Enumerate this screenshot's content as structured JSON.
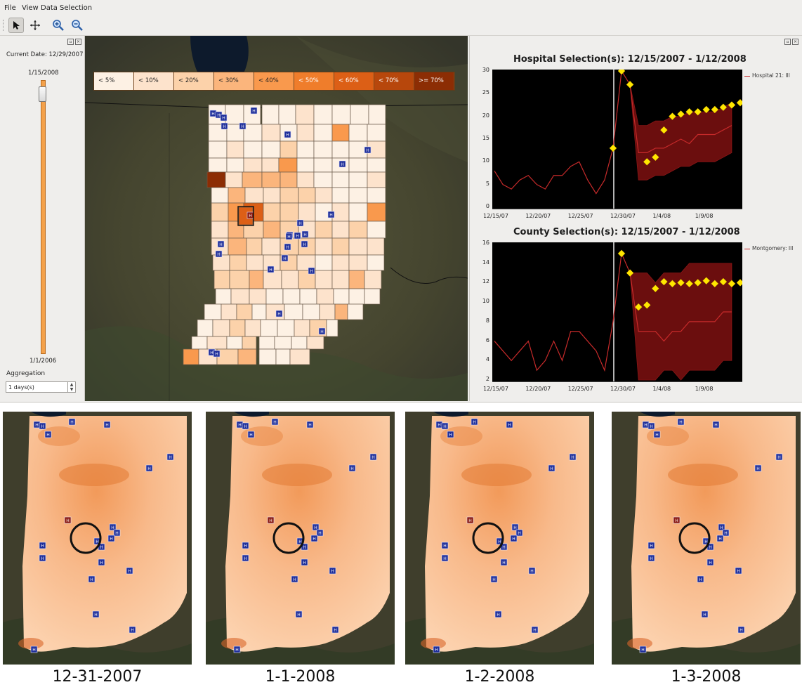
{
  "menubar": {
    "file": "File",
    "view": "View",
    "data_selection": "Data Selection"
  },
  "toolbar": {
    "tools": [
      {
        "name": "select-tool",
        "icon": "arrow-pointer-icon",
        "active": true
      },
      {
        "name": "pan-tool",
        "icon": "move-cross-icon",
        "active": false
      },
      {
        "name": "zoom-in-tool",
        "icon": "zoom-in-icon",
        "active": false
      },
      {
        "name": "zoom-out-tool",
        "icon": "zoom-out-icon",
        "active": false
      }
    ]
  },
  "left_panel": {
    "current_date": "Current Date: 12/29/2007",
    "slider_top": "1/15/2008",
    "slider_bottom": "1/1/2006",
    "aggregation_label": "Aggregation",
    "aggregation_value": "1 days(s)"
  },
  "legend": [
    {
      "label": "< 5%",
      "color": "#fdf1e4",
      "text_color": "#222"
    },
    {
      "label": "< 10%",
      "color": "#fde3cc",
      "text_color": "#222"
    },
    {
      "label": "< 20%",
      "color": "#fcd2aa",
      "text_color": "#222"
    },
    {
      "label": "< 30%",
      "color": "#fbb57c",
      "text_color": "#222"
    },
    {
      "label": "< 40%",
      "color": "#f9994d",
      "text_color": "#222"
    },
    {
      "label": "< 50%",
      "color": "#ef7d2b",
      "text_color": "#fff"
    },
    {
      "label": "< 60%",
      "color": "#dc5f16",
      "text_color": "#fff"
    },
    {
      "label": "< 70%",
      "color": "#b7470c",
      "text_color": "#fff"
    },
    {
      "label": ">= 70%",
      "color": "#8c2d04",
      "text_color": "#fff"
    }
  ],
  "colors": {
    "series": "#c62a2a",
    "band": "#6b0e0e",
    "marker": "#ffe600",
    "hospital": "#1e2e9a",
    "selected": "#8b1a12"
  },
  "hospital_marker_label": "H",
  "charts": [
    {
      "title": "Hospital Selection(s): 12/15/2007 - 1/12/2008",
      "legend": "Hospital 21: Ill",
      "chart_data": {
        "type": "line",
        "x_start": "12/15/07",
        "x_labels": [
          "12/15/07",
          "12/20/07",
          "12/25/07",
          "12/30/07",
          "1/4/08",
          "1/9/08"
        ],
        "ylim": [
          0,
          30
        ],
        "y_ticks": [
          0,
          5,
          10,
          15,
          20,
          25,
          30
        ],
        "current_day": 14,
        "series": [
          {
            "name": "Hospital 21: Ill",
            "values": [
              8,
              5,
              4,
              6,
              7,
              5,
              4,
              7,
              7,
              9,
              10,
              6,
              3,
              6,
              13,
              30,
              27,
              12,
              12,
              13,
              13,
              14,
              15,
              14,
              16,
              16,
              16,
              17,
              18
            ]
          }
        ],
        "band_lower": [
          null,
          null,
          null,
          null,
          null,
          null,
          null,
          null,
          null,
          null,
          null,
          null,
          null,
          null,
          null,
          null,
          27,
          6,
          6,
          7,
          7,
          8,
          9,
          9,
          10,
          10,
          10,
          11,
          12
        ],
        "band_upper": [
          null,
          null,
          null,
          null,
          null,
          null,
          null,
          null,
          null,
          null,
          null,
          null,
          null,
          null,
          null,
          null,
          27,
          18,
          18,
          19,
          19,
          20,
          20,
          21,
          21,
          21,
          21,
          22,
          23
        ],
        "alerts": [
          [
            14,
            13
          ],
          [
            15,
            30
          ],
          [
            16,
            27
          ],
          [
            18,
            10
          ],
          [
            19,
            11
          ],
          [
            20,
            17
          ],
          [
            21,
            20
          ],
          [
            22,
            20.5
          ],
          [
            23,
            21
          ],
          [
            24,
            21
          ],
          [
            25,
            21.5
          ],
          [
            26,
            21.5
          ],
          [
            27,
            22
          ],
          [
            28,
            22.5
          ],
          [
            29,
            23
          ]
        ]
      }
    },
    {
      "title": "County Selection(s): 12/15/2007 - 1/12/2008",
      "legend": "Montgomery: Ill",
      "chart_data": {
        "type": "line",
        "x_start": "12/15/07",
        "x_labels": [
          "12/15/07",
          "12/20/07",
          "12/25/07",
          "12/30/07",
          "1/4/08",
          "1/9/08"
        ],
        "ylim": [
          2,
          16
        ],
        "y_ticks": [
          2,
          4,
          6,
          8,
          10,
          12,
          14,
          16
        ],
        "current_day": 14,
        "series": [
          {
            "name": "Montgomery: Ill",
            "values": [
              6,
              5,
              4,
              5,
              6,
              3,
              4,
              6,
              4,
              7,
              7,
              6,
              5,
              3,
              8,
              15,
              13,
              7,
              7,
              7,
              6,
              7,
              7,
              8,
              8,
              8,
              8,
              9,
              9
            ]
          }
        ],
        "band_lower": [
          null,
          null,
          null,
          null,
          null,
          null,
          null,
          null,
          null,
          null,
          null,
          null,
          null,
          null,
          null,
          null,
          13,
          2,
          2,
          2,
          3,
          3,
          2,
          3,
          3,
          3,
          3,
          4,
          4
        ],
        "band_upper": [
          null,
          null,
          null,
          null,
          null,
          null,
          null,
          null,
          null,
          null,
          null,
          null,
          null,
          null,
          null,
          null,
          13,
          13,
          13,
          12,
          13,
          13,
          13,
          14,
          14,
          14,
          14,
          14,
          14
        ],
        "alerts": [
          [
            15,
            15
          ],
          [
            16,
            13
          ],
          [
            17,
            9.5
          ],
          [
            18,
            9.7
          ],
          [
            19,
            11.4
          ],
          [
            20,
            12.1
          ],
          [
            21,
            11.9
          ],
          [
            22,
            12
          ],
          [
            23,
            11.9
          ],
          [
            24,
            12
          ],
          [
            25,
            12.2
          ],
          [
            26,
            11.9
          ],
          [
            27,
            12.1
          ],
          [
            28,
            11.9
          ],
          [
            29,
            12
          ]
        ]
      }
    }
  ],
  "thumbnails": [
    {
      "label": "12-31-2007"
    },
    {
      "label": "1-1-2008"
    },
    {
      "label": "1-2-2008"
    },
    {
      "label": "1-3-2008"
    }
  ]
}
